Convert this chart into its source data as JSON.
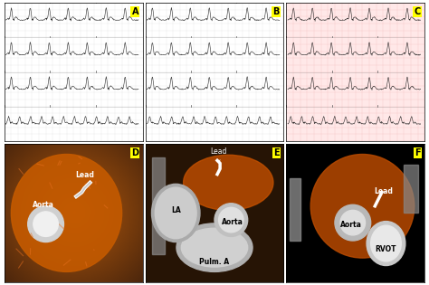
{
  "panels": [
    "A",
    "B",
    "C",
    "D",
    "E",
    "F"
  ],
  "ecg_bg_A": "#ffffff",
  "ecg_bg_B": "#ffffff",
  "ecg_bg_C": "#ffe8e8",
  "label_bg": "#ffff00",
  "label_color": "#000000",
  "border_color": "#000000",
  "figure_bg": "#ffffff",
  "ct_bg_D": "#8B4513",
  "ct_bg_E": "#a0522d",
  "ct_bg_F": "#000000",
  "grid_color_white": "#dddddd",
  "grid_color_pink": "#f5b8b8",
  "ecg_line_color": "#111111"
}
